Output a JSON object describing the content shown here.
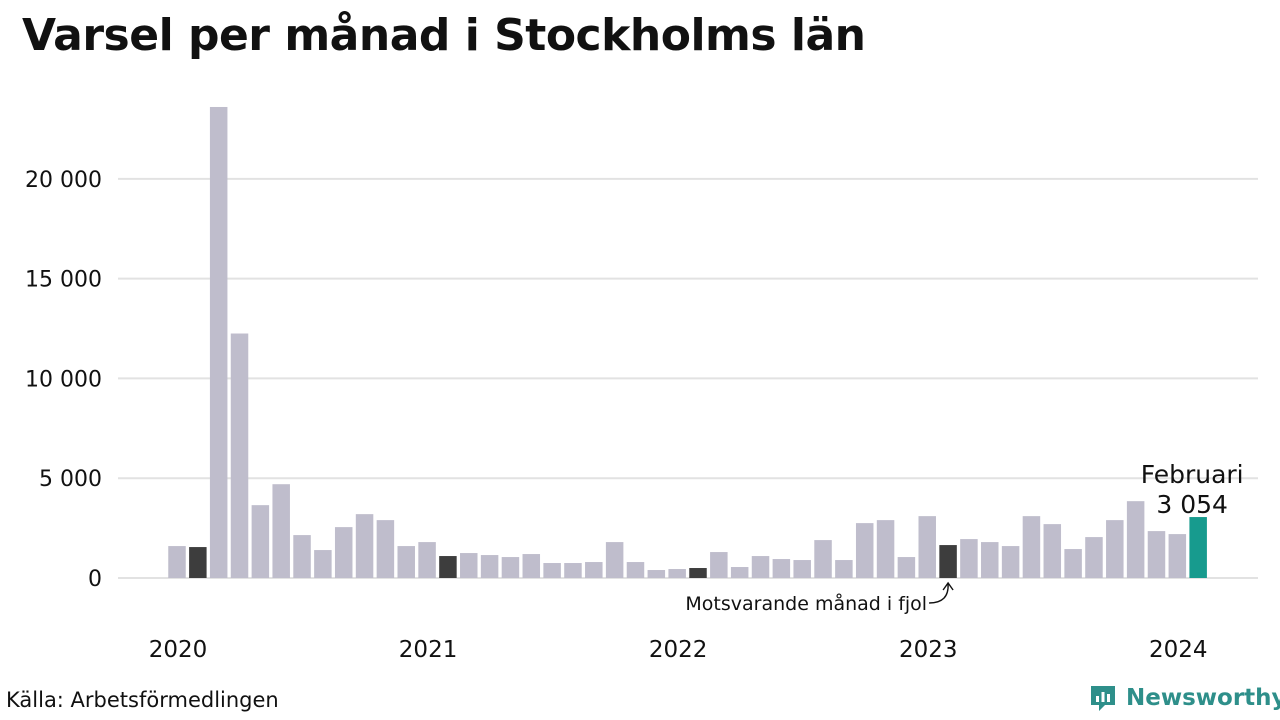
{
  "chart_data": {
    "type": "bar",
    "title": "Varsel per månad i Stockholms län",
    "source": "Källa: Arbetsförmedlingen",
    "brand": "Newsworthy",
    "ylim": [
      0,
      24000
    ],
    "y_ticks": [
      0,
      5000,
      10000,
      15000,
      20000
    ],
    "y_tick_labels": [
      "0",
      "5 000",
      "10 000",
      "15 000",
      "20 000"
    ],
    "x_tick_labels": [
      {
        "label": "2020",
        "index": 0
      },
      {
        "label": "2021",
        "index": 12
      },
      {
        "label": "2022",
        "index": 24
      },
      {
        "label": "2023",
        "index": 36
      },
      {
        "label": "2024",
        "index": 48
      }
    ],
    "grid": true,
    "months": [
      "2020-01",
      "2020-02",
      "2020-03",
      "2020-04",
      "2020-05",
      "2020-06",
      "2020-07",
      "2020-08",
      "2020-09",
      "2020-10",
      "2020-11",
      "2020-12",
      "2021-01",
      "2021-02",
      "2021-03",
      "2021-04",
      "2021-05",
      "2021-06",
      "2021-07",
      "2021-08",
      "2021-09",
      "2021-10",
      "2021-11",
      "2021-12",
      "2022-01",
      "2022-02",
      "2022-03",
      "2022-04",
      "2022-05",
      "2022-06",
      "2022-07",
      "2022-08",
      "2022-09",
      "2022-10",
      "2022-11",
      "2022-12",
      "2023-01",
      "2023-02",
      "2023-03",
      "2023-04",
      "2023-05",
      "2023-06",
      "2023-07",
      "2023-08",
      "2023-09",
      "2023-10",
      "2023-11",
      "2023-12",
      "2024-01",
      "2024-02"
    ],
    "values": [
      1600,
      1550,
      23600,
      12250,
      3650,
      4700,
      2150,
      1400,
      2550,
      3200,
      2900,
      1600,
      1800,
      1100,
      1250,
      1150,
      1050,
      1200,
      750,
      750,
      800,
      1800,
      800,
      400,
      450,
      500,
      1300,
      550,
      1100,
      950,
      900,
      1900,
      900,
      2750,
      2900,
      1050,
      3100,
      1650,
      1950,
      1800,
      1600,
      3100,
      2700,
      1450,
      2050,
      2900,
      3850,
      2350,
      2200,
      3054
    ],
    "highlight": {
      "february_indices": [
        1,
        13,
        25,
        37
      ],
      "current_index": 49,
      "current_label": "Februari",
      "current_value_label": "3 054",
      "annotation": "Motsvarande månad i fjol",
      "annotation_index": 37
    },
    "colors": {
      "default": "#bfbdcc",
      "february": "#3d3d3d",
      "current": "#179b8e",
      "grid": "#e2e2e2",
      "brand": "#2e8f8a"
    }
  }
}
